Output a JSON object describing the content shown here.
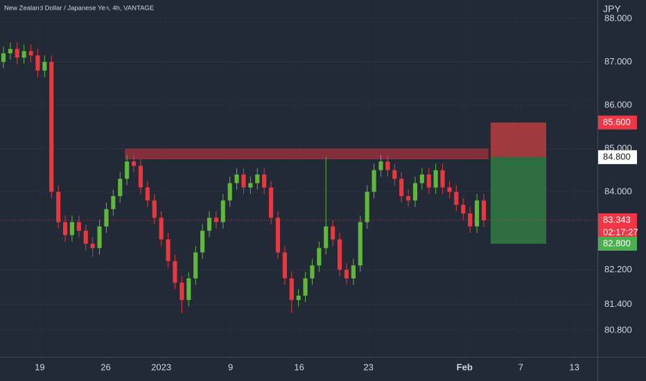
{
  "chart_data": {
    "type": "candlestick",
    "title": "New Zealand Dollar / Japanese Yen, 4h, VANTAGE",
    "currency": "JPY",
    "up_color": "#5fb83a",
    "down_color": "#e8383d",
    "xlim": [
      0,
      87.07
    ],
    "ylim": [
      80.19,
      88.43
    ],
    "xticks": [
      {
        "value": 5.8,
        "label": "19"
      },
      {
        "value": 15.4,
        "label": "26"
      },
      {
        "value": 23.5,
        "label": "2023"
      },
      {
        "value": 33.6,
        "label": "9"
      },
      {
        "value": 43.6,
        "label": "16"
      },
      {
        "value": 53.7,
        "label": "23"
      },
      {
        "value": 67.7,
        "label": "Feb"
      },
      {
        "value": 75.9,
        "label": "7"
      },
      {
        "value": 83.7,
        "label": "13"
      }
    ],
    "yticks": [
      {
        "value": 88,
        "label": "88.000"
      },
      {
        "value": 87,
        "label": "87.000"
      },
      {
        "value": 86,
        "label": "86.000"
      },
      {
        "value": 85,
        "label": "85.000"
      },
      {
        "value": 84,
        "label": "84.000"
      },
      {
        "value": 82.2,
        "label": "82.200"
      },
      {
        "value": 81.4,
        "label": "81.400"
      },
      {
        "value": 80.8,
        "label": "80.800"
      }
    ],
    "open": [
      87.0,
      87.2,
      87.3,
      87.1,
      87.25,
      87.15,
      86.8,
      87.0,
      84.0,
      83.3,
      83.0,
      83.3,
      83.1,
      82.8,
      82.7,
      83.2,
      83.6,
      83.9,
      84.3,
      84.7,
      84.6,
      84.1,
      83.8,
      83.4,
      82.9,
      82.4,
      81.9,
      81.5,
      82.0,
      82.6,
      83.1,
      83.4,
      83.3,
      83.8,
      84.2,
      84.4,
      84.1,
      84.2,
      84.4,
      84.1,
      83.4,
      82.6,
      82.0,
      81.5,
      81.6,
      82.0,
      82.3,
      82.7,
      83.2,
      82.9,
      82.2,
      82.0,
      82.3,
      83.3,
      84.0,
      84.5,
      84.7,
      84.5,
      84.3,
      83.9,
      83.8,
      84.2,
      84.4,
      84.1,
      84.5,
      84.1,
      84.0,
      83.7,
      83.5,
      83.2,
      83.8
    ],
    "high": [
      87.35,
      87.45,
      87.45,
      87.4,
      87.4,
      87.3,
      87.15,
      87.15,
      84.15,
      83.45,
      83.45,
      83.45,
      83.25,
      82.95,
      83.35,
      83.75,
      84.05,
      84.45,
      84.85,
      84.85,
      84.75,
      84.25,
      83.95,
      83.55,
      83.05,
      82.55,
      82.05,
      82.15,
      82.75,
      83.25,
      83.55,
      83.55,
      83.95,
      84.35,
      84.55,
      84.55,
      84.35,
      84.55,
      84.55,
      84.25,
      83.55,
      82.75,
      82.15,
      81.75,
      82.15,
      82.45,
      82.85,
      84.8,
      83.35,
      83.05,
      82.35,
      82.45,
      83.45,
      84.15,
      84.65,
      84.85,
      84.85,
      84.65,
      84.45,
      84.05,
      84.35,
      84.55,
      84.55,
      84.65,
      84.65,
      84.25,
      84.15,
      83.85,
      83.65,
      83.95,
      83.95
    ],
    "low": [
      86.85,
      87.05,
      86.95,
      86.95,
      87.0,
      86.65,
      86.65,
      83.85,
      83.15,
      82.85,
      82.85,
      82.95,
      82.65,
      82.5,
      82.55,
      83.05,
      83.45,
      83.75,
      84.15,
      84.45,
      83.95,
      83.65,
      83.25,
      82.75,
      82.25,
      81.75,
      81.2,
      81.35,
      81.85,
      82.45,
      82.95,
      83.15,
      83.15,
      83.65,
      84.05,
      83.95,
      83.95,
      84.05,
      83.95,
      83.25,
      82.45,
      81.85,
      81.2,
      81.35,
      81.45,
      81.85,
      82.15,
      82.55,
      82.75,
      82.05,
      81.85,
      81.85,
      82.15,
      83.15,
      83.85,
      84.35,
      84.35,
      84.15,
      83.75,
      83.65,
      83.65,
      84.05,
      83.95,
      83.95,
      83.95,
      83.85,
      83.55,
      83.35,
      83.05,
      83.05,
      83.19
    ],
    "close": [
      87.2,
      87.3,
      87.1,
      87.25,
      87.15,
      86.8,
      87.0,
      84.0,
      83.3,
      83.0,
      83.3,
      83.1,
      82.8,
      82.7,
      83.2,
      83.6,
      83.9,
      84.3,
      84.7,
      84.6,
      84.1,
      83.8,
      83.4,
      82.9,
      82.4,
      81.9,
      81.5,
      82.0,
      82.6,
      83.1,
      83.4,
      83.3,
      83.8,
      84.2,
      84.4,
      84.1,
      84.2,
      84.4,
      84.1,
      83.4,
      82.6,
      82.0,
      81.5,
      81.6,
      82.0,
      82.3,
      82.7,
      83.2,
      82.9,
      82.2,
      82.0,
      82.3,
      83.3,
      84.0,
      84.5,
      84.7,
      84.5,
      84.3,
      83.9,
      83.8,
      84.2,
      84.4,
      84.1,
      84.5,
      84.1,
      84.0,
      83.7,
      83.5,
      83.2,
      83.8,
      83.343
    ],
    "resistance_zone": {
      "x": [
        18.2,
        71.2
      ],
      "y": [
        84.75,
        85.0
      ],
      "color": "#a1313f"
    },
    "position": {
      "x": [
        71.5,
        79.6
      ],
      "entry": 84.8,
      "stop": 85.6,
      "target": 82.8,
      "stop_color": "#a13a3f",
      "target_color": "#2f6e3f"
    },
    "price_labels": [
      {
        "value": 85.6,
        "label": "85.600",
        "color": "#f23645",
        "text_color": "#ffffff"
      },
      {
        "value": 84.8,
        "label": "84.800",
        "color": "#ffffff",
        "text_color": "#131722"
      },
      {
        "value": 83.343,
        "label": "83.343",
        "countdown": "02:17:27",
        "color": "#f23645",
        "text_color": "#ffffff"
      },
      {
        "value": 82.8,
        "label": "82.800",
        "color": "#4caf50",
        "text_color": "#ffffff"
      }
    ]
  }
}
